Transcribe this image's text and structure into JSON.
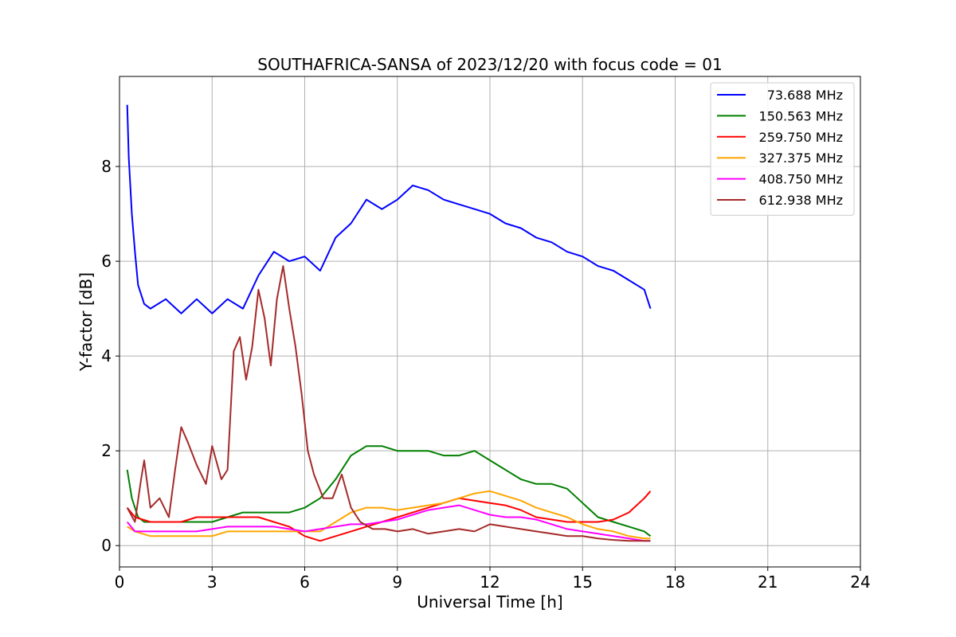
{
  "chart_data": {
    "type": "line",
    "title": "SOUTHAFRICA-SANSA of 2023/12/20 with focus code = 01",
    "xlabel": "Universal Time [h]",
    "ylabel": "Y-factor [dB]",
    "xlim": [
      0,
      24
    ],
    "ylim": [
      -0.45,
      9.9
    ],
    "xticks": [
      0,
      3,
      6,
      9,
      12,
      15,
      18,
      21,
      24
    ],
    "xtick_labels": [
      "0",
      "3",
      "6",
      "9",
      "12",
      "15",
      "18",
      "21",
      "24"
    ],
    "yticks": [
      0,
      2,
      4,
      6,
      8
    ],
    "ytick_labels": [
      "0",
      "2",
      "4",
      "6",
      "8"
    ],
    "grid": true,
    "legend_position": "top-right",
    "series": [
      {
        "name": "73.688 MHz",
        "color": "#0000ff",
        "x": [
          0.25,
          0.3,
          0.4,
          0.5,
          0.6,
          0.8,
          1.0,
          1.5,
          2.0,
          2.5,
          3.0,
          3.5,
          4.0,
          4.5,
          5.0,
          5.5,
          6.0,
          6.5,
          7.0,
          7.5,
          8.0,
          8.5,
          9.0,
          9.5,
          10.0,
          10.5,
          11.0,
          11.5,
          12.0,
          12.5,
          13.0,
          13.5,
          14.0,
          14.5,
          15.0,
          15.5,
          16.0,
          16.5,
          17.0,
          17.2
        ],
        "y": [
          9.3,
          8.2,
          7.0,
          6.2,
          5.5,
          5.1,
          5.0,
          5.2,
          4.9,
          5.2,
          4.9,
          5.2,
          5.0,
          5.7,
          6.2,
          6.0,
          6.1,
          5.8,
          6.5,
          6.8,
          7.3,
          7.1,
          7.3,
          7.6,
          7.5,
          7.3,
          7.2,
          7.1,
          7.0,
          6.8,
          6.7,
          6.5,
          6.4,
          6.2,
          6.1,
          5.9,
          5.8,
          5.6,
          5.4,
          5.0
        ]
      },
      {
        "name": "150.563 MHz",
        "color": "#008000",
        "x": [
          0.25,
          0.4,
          0.6,
          0.8,
          1.0,
          1.5,
          2.0,
          2.5,
          3.0,
          3.5,
          4.0,
          4.5,
          5.0,
          5.5,
          6.0,
          6.5,
          7.0,
          7.5,
          8.0,
          8.5,
          9.0,
          9.5,
          10.0,
          10.5,
          11.0,
          11.5,
          12.0,
          12.5,
          13.0,
          13.5,
          14.0,
          14.5,
          15.0,
          15.5,
          16.0,
          16.5,
          17.0,
          17.2
        ],
        "y": [
          1.6,
          1.0,
          0.6,
          0.5,
          0.5,
          0.5,
          0.5,
          0.5,
          0.5,
          0.6,
          0.7,
          0.7,
          0.7,
          0.7,
          0.8,
          1.0,
          1.4,
          1.9,
          2.1,
          2.1,
          2.0,
          2.0,
          2.0,
          1.9,
          1.9,
          2.0,
          1.8,
          1.6,
          1.4,
          1.3,
          1.3,
          1.2,
          0.9,
          0.6,
          0.5,
          0.4,
          0.3,
          0.2
        ]
      },
      {
        "name": "259.750 MHz",
        "color": "#ff0000",
        "x": [
          0.25,
          0.5,
          1.0,
          1.5,
          2.0,
          2.5,
          3.0,
          3.5,
          4.0,
          4.5,
          5.0,
          5.5,
          6.0,
          6.5,
          7.0,
          7.5,
          8.0,
          8.5,
          9.0,
          9.5,
          10.0,
          10.5,
          11.0,
          11.5,
          12.0,
          12.5,
          13.0,
          13.5,
          14.0,
          14.5,
          15.0,
          15.5,
          16.0,
          16.5,
          17.0,
          17.2
        ],
        "y": [
          0.8,
          0.6,
          0.5,
          0.5,
          0.5,
          0.6,
          0.6,
          0.6,
          0.6,
          0.6,
          0.5,
          0.4,
          0.2,
          0.1,
          0.2,
          0.3,
          0.4,
          0.5,
          0.6,
          0.7,
          0.8,
          0.9,
          1.0,
          0.95,
          0.9,
          0.85,
          0.75,
          0.6,
          0.55,
          0.5,
          0.5,
          0.5,
          0.55,
          0.7,
          1.0,
          1.15
        ]
      },
      {
        "name": "327.375 MHz",
        "color": "#ffa500",
        "x": [
          0.25,
          0.5,
          1.0,
          1.5,
          2.0,
          2.5,
          3.0,
          3.5,
          4.0,
          4.5,
          5.0,
          5.5,
          6.0,
          6.5,
          7.0,
          7.5,
          8.0,
          8.5,
          9.0,
          9.5,
          10.0,
          10.5,
          11.0,
          11.5,
          12.0,
          12.5,
          13.0,
          13.5,
          14.0,
          14.5,
          15.0,
          15.5,
          16.0,
          16.5,
          17.0,
          17.2
        ],
        "y": [
          0.4,
          0.3,
          0.2,
          0.2,
          0.2,
          0.2,
          0.2,
          0.3,
          0.3,
          0.3,
          0.3,
          0.3,
          0.3,
          0.3,
          0.5,
          0.7,
          0.8,
          0.8,
          0.75,
          0.8,
          0.85,
          0.9,
          1.0,
          1.1,
          1.15,
          1.05,
          0.95,
          0.8,
          0.7,
          0.6,
          0.45,
          0.35,
          0.3,
          0.2,
          0.15,
          0.15
        ]
      },
      {
        "name": "408.750 MHz",
        "color": "#ff00ff",
        "x": [
          0.25,
          0.5,
          1.0,
          1.5,
          2.0,
          2.5,
          3.0,
          3.5,
          4.0,
          4.5,
          5.0,
          5.5,
          6.0,
          6.5,
          7.0,
          7.5,
          8.0,
          8.5,
          9.0,
          9.5,
          10.0,
          10.5,
          11.0,
          11.5,
          12.0,
          12.5,
          13.0,
          13.5,
          14.0,
          14.5,
          15.0,
          15.5,
          16.0,
          16.5,
          17.0,
          17.2
        ],
        "y": [
          0.5,
          0.3,
          0.3,
          0.3,
          0.3,
          0.3,
          0.35,
          0.4,
          0.4,
          0.4,
          0.4,
          0.35,
          0.3,
          0.35,
          0.4,
          0.45,
          0.45,
          0.5,
          0.55,
          0.65,
          0.75,
          0.8,
          0.85,
          0.75,
          0.65,
          0.6,
          0.6,
          0.55,
          0.45,
          0.35,
          0.3,
          0.25,
          0.2,
          0.15,
          0.1,
          0.1
        ]
      },
      {
        "name": "612.938 MHz",
        "color": "#a52a2a",
        "x": [
          0.25,
          0.5,
          0.7,
          0.8,
          1.0,
          1.3,
          1.6,
          1.8,
          2.0,
          2.2,
          2.5,
          2.8,
          3.0,
          3.3,
          3.5,
          3.7,
          3.9,
          4.1,
          4.3,
          4.5,
          4.7,
          4.9,
          5.1,
          5.3,
          5.5,
          5.7,
          5.9,
          6.1,
          6.3,
          6.6,
          6.9,
          7.2,
          7.5,
          7.8,
          8.2,
          8.6,
          9.0,
          9.5,
          10.0,
          10.5,
          11.0,
          11.5,
          12.0,
          12.5,
          13.0,
          13.5,
          14.0,
          14.5,
          15.0,
          15.5,
          16.0,
          16.5,
          17.0,
          17.2
        ],
        "y": [
          0.8,
          0.5,
          1.4,
          1.8,
          0.8,
          1.0,
          0.6,
          1.6,
          2.5,
          2.2,
          1.7,
          1.3,
          2.1,
          1.4,
          1.6,
          4.1,
          4.4,
          3.5,
          4.2,
          5.4,
          4.8,
          3.8,
          5.2,
          5.9,
          5.0,
          4.2,
          3.2,
          2.0,
          1.5,
          1.0,
          1.0,
          1.5,
          0.8,
          0.5,
          0.35,
          0.35,
          0.3,
          0.35,
          0.25,
          0.3,
          0.35,
          0.3,
          0.45,
          0.4,
          0.35,
          0.3,
          0.25,
          0.2,
          0.2,
          0.15,
          0.12,
          0.1,
          0.1,
          0.1
        ]
      }
    ]
  }
}
